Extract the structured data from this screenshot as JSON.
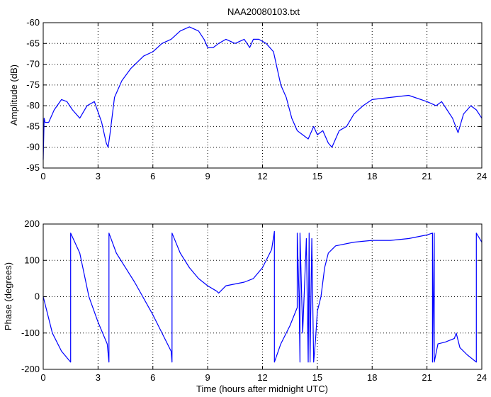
{
  "chart_data": [
    {
      "type": "line",
      "title": "NAA20080103.txt",
      "xlabel": "",
      "ylabel": "Amplitude (dB)",
      "xlim": [
        0,
        24
      ],
      "ylim": [
        -95,
        -60
      ],
      "grid": true,
      "x_ticks": [
        0,
        3,
        6,
        9,
        12,
        15,
        18,
        21,
        24
      ],
      "y_ticks": [
        -95,
        -90,
        -85,
        -80,
        -75,
        -70,
        -65,
        -60
      ],
      "line_color": "#0000ff",
      "series": [
        {
          "x": [
            0,
            0.05,
            0.1,
            0.3,
            0.6,
            1.0,
            1.3,
            1.6,
            2.0,
            2.4,
            2.8,
            3.2,
            3.45,
            3.55,
            3.65,
            3.9,
            4.3,
            4.8,
            5.5,
            6.0,
            6.5,
            7.0,
            7.5,
            8.0,
            8.5,
            8.8,
            9.0,
            9.3,
            9.6,
            10.0,
            10.5,
            11.0,
            11.3,
            11.5,
            11.8,
            12.2,
            12.6,
            13.0,
            13.3,
            13.6,
            13.9,
            14.2,
            14.5,
            14.8,
            15.0,
            15.3,
            15.6,
            15.8,
            16.2,
            16.6,
            17.0,
            17.5,
            18.0,
            19.0,
            20.0,
            21.0,
            21.5,
            21.8,
            22.1,
            22.4,
            22.7,
            23.0,
            23.4,
            23.7,
            24.0
          ],
          "y": [
            -93,
            -83,
            -84,
            -84,
            -81,
            -78.5,
            -79,
            -81,
            -83,
            -80,
            -79,
            -84,
            -89,
            -90,
            -87,
            -78,
            -74,
            -71,
            -68,
            -67,
            -65,
            -64,
            -62,
            -61,
            -62,
            -64,
            -66,
            -66,
            -65,
            -64,
            -65,
            -64,
            -66,
            -64,
            -64,
            -65,
            -67,
            -75,
            -78,
            -83,
            -86,
            -87,
            -88,
            -85,
            -87,
            -86,
            -89,
            -90,
            -86,
            -85,
            -82,
            -80,
            -78.5,
            -78,
            -77.5,
            -79,
            -80,
            -79,
            -81,
            -83,
            -86.5,
            -82,
            -80,
            -81,
            -83
          ]
        }
      ]
    },
    {
      "type": "line",
      "title": "",
      "xlabel": "Time (hours after midnight UTC)",
      "ylabel": "Phase (degrees)",
      "xlim": [
        0,
        24
      ],
      "ylim": [
        -200,
        200
      ],
      "grid": true,
      "x_ticks": [
        0,
        3,
        6,
        9,
        12,
        15,
        18,
        21,
        24
      ],
      "y_ticks": [
        -200,
        -100,
        0,
        100,
        200
      ],
      "line_color": "#0000ff",
      "series": [
        {
          "x": [
            0,
            0.5,
            1.0,
            1.5,
            1.5,
            2.0,
            2.5,
            3.0,
            3.5,
            3.6,
            3.6,
            4.0,
            5.0,
            6.0,
            7.0,
            7.05,
            7.05,
            7.5,
            8.0,
            8.5,
            9.0,
            9.5,
            9.6,
            10.0,
            11.0,
            11.5,
            12.0,
            12.5,
            12.65,
            12.65,
            13.0,
            13.5,
            13.9,
            13.9,
            14.0,
            14.05,
            14.05,
            14.2,
            14.4,
            14.5,
            14.55,
            14.6,
            14.7,
            14.8,
            14.9,
            15.0,
            15.2,
            15.4,
            15.6,
            15.8,
            16.0,
            17.0,
            18.0,
            19.0,
            20.0,
            21.0,
            21.3,
            21.3,
            21.4,
            21.4,
            21.6,
            22.0,
            22.5,
            22.6,
            22.8,
            23.2,
            23.7,
            23.7,
            24.0
          ],
          "y": [
            0,
            -100,
            -150,
            -180,
            175,
            120,
            0,
            -70,
            -130,
            -180,
            175,
            120,
            40,
            -50,
            -150,
            -180,
            175,
            120,
            80,
            50,
            30,
            15,
            10,
            30,
            40,
            50,
            80,
            130,
            180,
            -180,
            -130,
            -80,
            -30,
            175,
            0,
            -180,
            175,
            -100,
            160,
            -180,
            175,
            -180,
            160,
            -180,
            -120,
            -40,
            0,
            80,
            120,
            130,
            140,
            150,
            155,
            155,
            160,
            170,
            175,
            -180,
            175,
            -180,
            -130,
            -125,
            -115,
            -100,
            -140,
            -160,
            -180,
            175,
            150
          ]
        }
      ]
    }
  ]
}
